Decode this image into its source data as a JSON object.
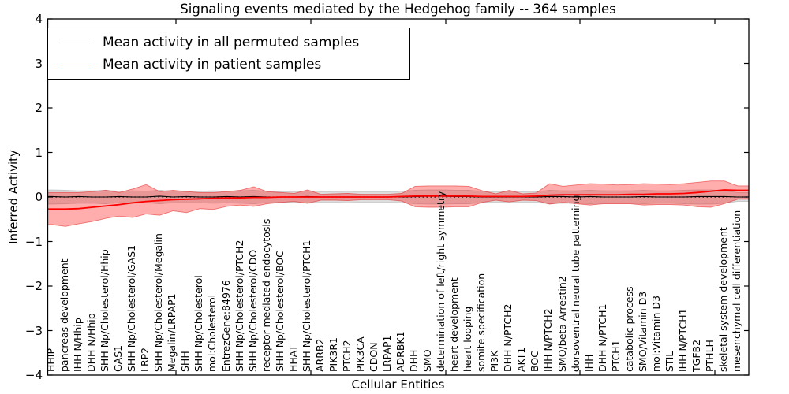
{
  "chart_data": {
    "type": "line",
    "title": "Signaling events mediated by the Hedgehog family -- 364 samples",
    "xlabel": "Cellular Entities",
    "ylabel": "Inferred Activity",
    "ylim": [
      -4,
      4
    ],
    "ytick_labels": [
      "4",
      "3",
      "2",
      "1",
      "0",
      "−1",
      "−2",
      "−3",
      "−4"
    ],
    "ytick_values": [
      4,
      3,
      2,
      1,
      0,
      -1,
      -2,
      -3,
      -4
    ],
    "grid": false,
    "legend_position": "upper left",
    "zero_line": {
      "style": "dotted",
      "color": "#000000",
      "y": 0
    },
    "colors": {
      "permuted_line": "#000000",
      "patient_line": "#ff0000",
      "permuted_band": "rgba(0,0,0,0.13)",
      "patient_band": "rgba(255,0,0,0.32)"
    },
    "categories": [
      "HHIP",
      "pancreas development",
      "IHH N/Hhip",
      "DHH N/Hhip",
      "SHH Np/Cholesterol/Hhip",
      "GAS1",
      "SHH Np/Cholesterol/GAS1",
      "LRP2",
      "SHH Np/Cholesterol/Megalin",
      "Megalin/LRPAP1",
      "SHH",
      "SHH Np/Cholesterol",
      "mol:Cholesterol",
      "EntrezGene:84976",
      "SHH Np/Cholesterol/PTCH2",
      "SHH Np/Cholesterol/CDO",
      "receptor-mediated endocytosis",
      "SHH Np/Cholesterol/BOC",
      "HHAT",
      "SHH Np/Cholesterol/PTCH1",
      "ARRB2",
      "PIK3R1",
      "PTCH2",
      "PIK3CA",
      "CDON",
      "LRPAP1",
      "ADRBK1",
      "DHH",
      "SMO",
      "determination of left/right symmetry",
      "heart development",
      "heart looping",
      "somite specification",
      "PI3K",
      "DHH N/PTCH2",
      "AKT1",
      "BOC",
      "IHH N/PTCH2",
      "SMO/beta Arrestin2",
      "dorsoventral neural tube patterning",
      "IHH",
      "DHH N/PTCH1",
      "PTCH1",
      "catabolic process",
      "SMO/Vitamin D3",
      "mol:Vitamin D3",
      "STIL",
      "IHH N/PTCH1",
      "TGFB2",
      "PTHLH",
      "skeletal system development",
      "mesenchymal cell differentiation"
    ],
    "series": [
      {
        "name": "Mean activity in all permuted samples",
        "values": [
          0.01,
          0,
          0.01,
          0,
          0,
          0.01,
          0,
          0,
          0.02,
          0,
          0.01,
          0,
          0,
          0.01,
          0,
          0.01,
          0,
          0,
          0,
          0.01,
          0,
          0,
          0,
          0,
          0,
          0,
          0,
          0.01,
          0.02,
          0.02,
          0.01,
          0.01,
          0,
          0,
          0,
          0,
          0,
          0.01,
          0.01,
          0,
          0.01,
          0,
          0,
          0,
          0.01,
          0,
          0,
          0,
          0.01,
          0.01,
          0.01,
          0
        ]
      },
      {
        "name": "Mean activity in patient samples",
        "values": [
          -0.27,
          -0.27,
          -0.26,
          -0.23,
          -0.2,
          -0.17,
          -0.13,
          -0.1,
          -0.08,
          -0.06,
          -0.05,
          -0.04,
          -0.03,
          -0.02,
          -0.02,
          -0.01,
          -0.01,
          0,
          0,
          0,
          0,
          0,
          0,
          0,
          0,
          0,
          0.01,
          0.02,
          0.02,
          0.02,
          0.02,
          0.02,
          0.01,
          0.01,
          0.01,
          0.01,
          0.02,
          0.04,
          0.05,
          0.05,
          0.05,
          0.05,
          0.05,
          0.06,
          0.06,
          0.07,
          0.07,
          0.08,
          0.1,
          0.13,
          0.16,
          0.15
        ]
      }
    ],
    "bands": [
      {
        "name": "permuted-std-band",
        "upper": [
          0.16,
          0.15,
          0.14,
          0.14,
          0.15,
          0.13,
          0.14,
          0.13,
          0.15,
          0.13,
          0.13,
          0.13,
          0.14,
          0.13,
          0.14,
          0.15,
          0.13,
          0.12,
          0.12,
          0.14,
          0.12,
          0.12,
          0.13,
          0.12,
          0.12,
          0.12,
          0.13,
          0.15,
          0.16,
          0.16,
          0.15,
          0.15,
          0.13,
          0.12,
          0.13,
          0.12,
          0.12,
          0.15,
          0.14,
          0.14,
          0.15,
          0.14,
          0.14,
          0.14,
          0.15,
          0.14,
          0.14,
          0.15,
          0.16,
          0.16,
          0.14,
          0.1
        ],
        "lower": [
          -0.16,
          -0.15,
          -0.14,
          -0.14,
          -0.15,
          -0.13,
          -0.14,
          -0.13,
          -0.15,
          -0.13,
          -0.13,
          -0.13,
          -0.14,
          -0.13,
          -0.14,
          -0.15,
          -0.13,
          -0.12,
          -0.12,
          -0.14,
          -0.12,
          -0.12,
          -0.13,
          -0.12,
          -0.12,
          -0.12,
          -0.13,
          -0.15,
          -0.16,
          -0.16,
          -0.15,
          -0.15,
          -0.13,
          -0.12,
          -0.13,
          -0.12,
          -0.12,
          -0.15,
          -0.14,
          -0.14,
          -0.15,
          -0.14,
          -0.14,
          -0.14,
          -0.15,
          -0.14,
          -0.14,
          -0.15,
          -0.16,
          -0.16,
          -0.14,
          -0.1
        ]
      },
      {
        "name": "patient-std-band",
        "upper": [
          0.1,
          0.1,
          0.1,
          0.12,
          0.15,
          0.1,
          0.18,
          0.28,
          0.12,
          0.15,
          0.12,
          0.1,
          0.1,
          0.12,
          0.15,
          0.23,
          0.12,
          0.1,
          0.08,
          0.16,
          0.06,
          0.07,
          0.08,
          0.06,
          0.06,
          0.06,
          0.08,
          0.24,
          0.25,
          0.25,
          0.25,
          0.24,
          0.14,
          0.07,
          0.15,
          0.07,
          0.09,
          0.3,
          0.24,
          0.27,
          0.3,
          0.29,
          0.27,
          0.28,
          0.3,
          0.29,
          0.28,
          0.3,
          0.33,
          0.36,
          0.36,
          0.25
        ],
        "lower": [
          -0.62,
          -0.66,
          -0.6,
          -0.55,
          -0.48,
          -0.43,
          -0.46,
          -0.38,
          -0.41,
          -0.31,
          -0.35,
          -0.26,
          -0.28,
          -0.21,
          -0.18,
          -0.21,
          -0.15,
          -0.12,
          -0.1,
          -0.14,
          -0.07,
          -0.07,
          -0.08,
          -0.06,
          -0.06,
          -0.06,
          -0.09,
          -0.22,
          -0.23,
          -0.23,
          -0.22,
          -0.22,
          -0.12,
          -0.07,
          -0.11,
          -0.07,
          -0.08,
          -0.16,
          -0.12,
          -0.15,
          -0.18,
          -0.15,
          -0.15,
          -0.15,
          -0.18,
          -0.17,
          -0.17,
          -0.18,
          -0.22,
          -0.23,
          -0.15,
          -0.05
        ]
      }
    ]
  }
}
